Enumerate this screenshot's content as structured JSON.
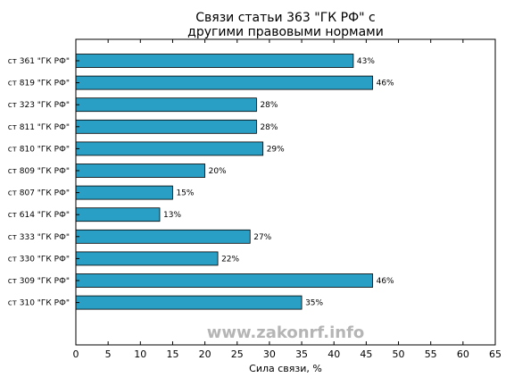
{
  "chart_data": {
    "type": "bar",
    "orientation": "horizontal",
    "title_lines": [
      "Связи статьи 363 \"ГК РФ\" с",
      "другими правовыми нормами"
    ],
    "xlabel": "Сила связи, %",
    "xlim": [
      0,
      65
    ],
    "xticks": [
      0,
      5,
      10,
      15,
      20,
      25,
      30,
      35,
      40,
      45,
      50,
      55,
      60,
      65
    ],
    "categories": [
      "ст 361 \"ГК РФ\"",
      "ст 819 \"ГК РФ\"",
      "ст 323 \"ГК РФ\"",
      "ст 811 \"ГК РФ\"",
      "ст 810 \"ГК РФ\"",
      "ст 809 \"ГК РФ\"",
      "ст 807 \"ГК РФ\"",
      "ст 614 \"ГК РФ\"",
      "ст 333 \"ГК РФ\"",
      "ст 330 \"ГК РФ\"",
      "ст 309 \"ГК РФ\"",
      "ст 310 \"ГК РФ\""
    ],
    "values": [
      43,
      46,
      28,
      28,
      29,
      20,
      15,
      13,
      27,
      22,
      46,
      35
    ],
    "data_labels": [
      "43%",
      "46%",
      "28%",
      "28%",
      "29%",
      "20%",
      "15%",
      "13%",
      "27%",
      "22%",
      "46%",
      "35%"
    ],
    "bar_color": "#2a9fc6",
    "grid": false
  },
  "watermark": "www.zakonrf.info"
}
